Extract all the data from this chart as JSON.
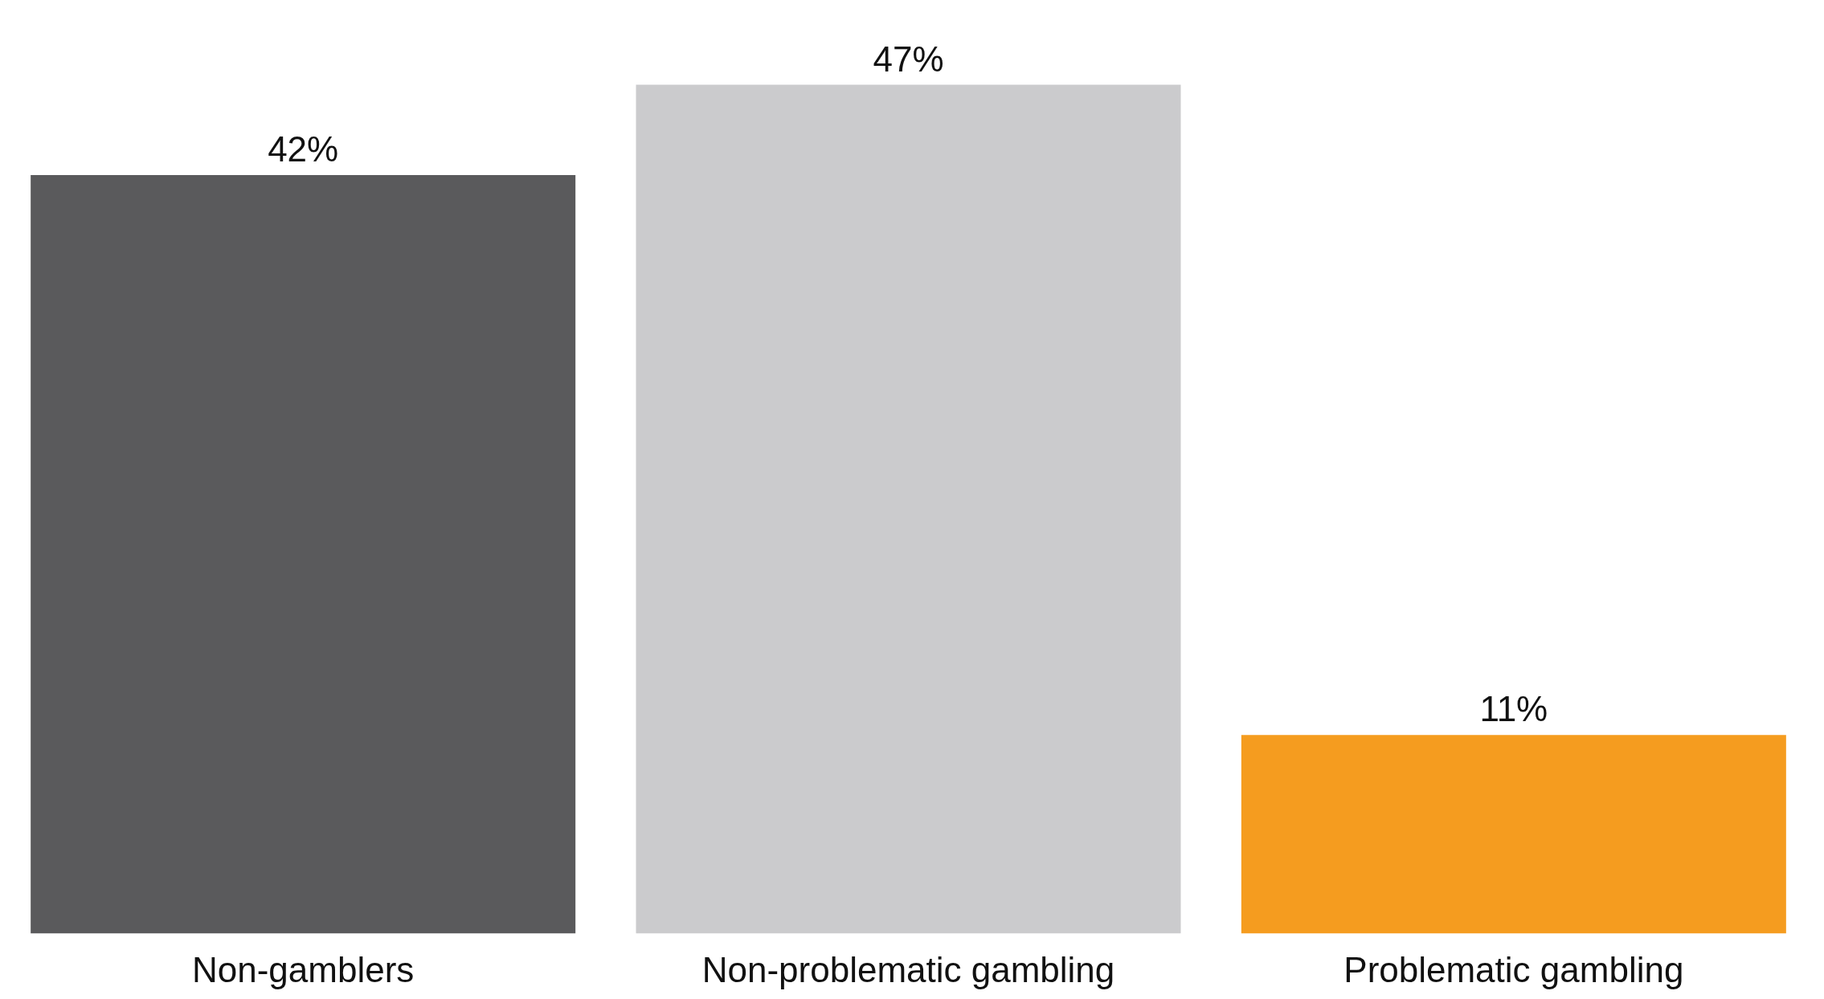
{
  "chart_data": {
    "type": "bar",
    "categories": [
      "Non-gamblers",
      "Non-problematic gambling",
      "Problematic gambling"
    ],
    "values": [
      42,
      47,
      11
    ],
    "colors": [
      "#5a5a5c",
      "#cbcbcd",
      "#f59c1f"
    ],
    "value_labels": [
      "42%",
      "47%",
      "11%"
    ]
  }
}
